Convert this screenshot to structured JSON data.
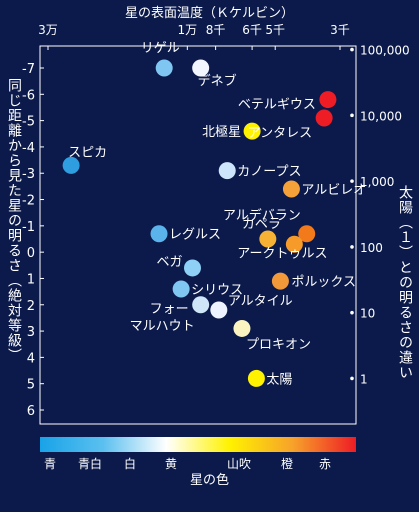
{
  "chart_data": {
    "type": "scatter",
    "title": "星の表面温度（Ｋケルビン）",
    "xlabel": "星の色",
    "ylabel": "同じ距離から見た星の明るさ（絶対等級）",
    "ylabel_right": "太陽（１）との明るさの違い",
    "temperature_ticks": [
      "3万",
      "1万",
      "8千",
      "6千",
      "5千",
      "3千"
    ],
    "color_ticks": [
      "青",
      "青白",
      "白",
      "黄",
      "山吹",
      "橙",
      "赤"
    ],
    "y_ticks": [
      "-7",
      "-6",
      "-5",
      "-4",
      "-3",
      "-2",
      "-1",
      "0",
      "1",
      "2",
      "3",
      "4",
      "5",
      "6"
    ],
    "y_range": [
      -7,
      6
    ],
    "right_ticks": [
      "100,000",
      "10,000",
      "1,000",
      "100",
      "10",
      "1"
    ],
    "points": [
      {
        "name": "リゲル",
        "temperature": 12000,
        "abs_mag": -7.0,
        "color": "#7fc6f2"
      },
      {
        "name": "デネブ",
        "temperature": 9000,
        "abs_mag": -7.0,
        "color": "#f2f6ff"
      },
      {
        "name": "ベテルギウス",
        "temperature": 3300,
        "abs_mag": -5.8,
        "color": "#ee1c25"
      },
      {
        "name": "アンタレス",
        "temperature": 3400,
        "abs_mag": -5.1,
        "color": "#ee1c25"
      },
      {
        "name": "北極星",
        "temperature": 6000,
        "abs_mag": -4.6,
        "color": "#fff200"
      },
      {
        "name": "スピカ",
        "temperature": 25000,
        "abs_mag": -3.3,
        "color": "#2e9ee0"
      },
      {
        "name": "カノープス",
        "temperature": 7300,
        "abs_mag": -3.1,
        "color": "#cde6fb"
      },
      {
        "name": "アルビレオ",
        "temperature": 4400,
        "abs_mag": -2.4,
        "color": "#f5a13a"
      },
      {
        "name": "レグルス",
        "temperature": 12500,
        "abs_mag": -0.7,
        "color": "#5bb3ec"
      },
      {
        "name": "アルデバラン",
        "temperature": 3900,
        "abs_mag": -0.7,
        "color": "#f27a1a"
      },
      {
        "name": "カペラ",
        "temperature": 5300,
        "abs_mag": -0.5,
        "color": "#f7b235"
      },
      {
        "name": "アークトゥルス",
        "temperature": 4300,
        "abs_mag": -0.3,
        "color": "#f69a2a"
      },
      {
        "name": "ベガ",
        "temperature": 9600,
        "abs_mag": 0.6,
        "color": "#8ed0f6"
      },
      {
        "name": "ポルックス",
        "temperature": 4800,
        "abs_mag": 1.1,
        "color": "#f29a3a"
      },
      {
        "name": "シリウス",
        "temperature": 10500,
        "abs_mag": 1.4,
        "color": "#7fc6f2"
      },
      {
        "name": "フォーマルハウト",
        "temperature": 9000,
        "abs_mag": 2.0,
        "color": "#cfe6f8"
      },
      {
        "name": "アルタイル",
        "temperature": 7800,
        "abs_mag": 2.2,
        "color": "#eef4ff"
      },
      {
        "name": "プロキオン",
        "temperature": 6500,
        "abs_mag": 2.9,
        "color": "#fbf3c0"
      },
      {
        "name": "太陽",
        "temperature": 5800,
        "abs_mag": 4.8,
        "color": "#fff200"
      }
    ],
    "colorbar": [
      "#18a3e8",
      "#5bc0ef",
      "#ffffff",
      "#fff200",
      "#f7a22a",
      "#ee1c25"
    ]
  }
}
